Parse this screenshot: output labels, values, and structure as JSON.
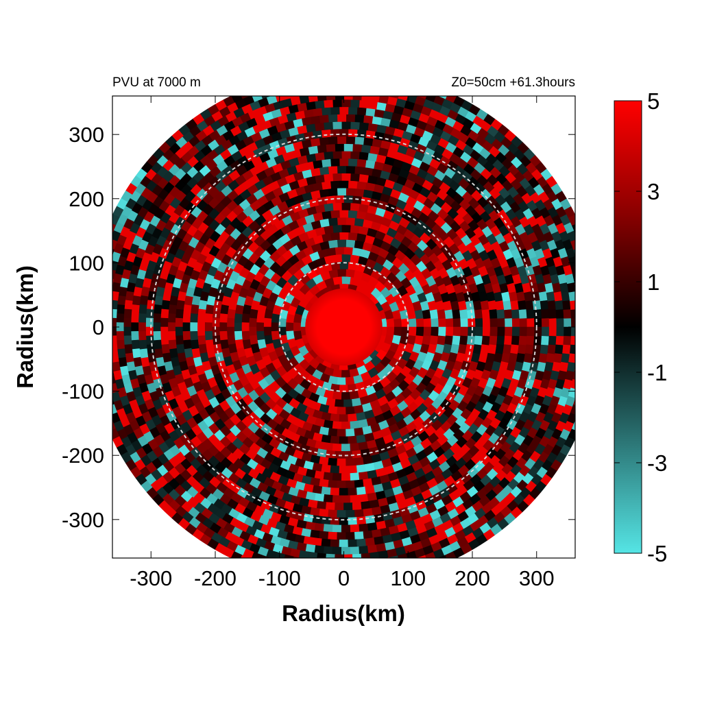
{
  "chart_data": {
    "type": "heatmap",
    "title_left": "PVU at  7000 m",
    "title_right": "Z0=50cm  +61.3hours",
    "xlabel": "Radius(km)",
    "ylabel": "Radius(km)",
    "xlim": [
      -360,
      360
    ],
    "ylim": [
      -360,
      360
    ],
    "x_ticks": [
      -300,
      -200,
      -100,
      0,
      100,
      200,
      300
    ],
    "y_ticks": [
      300,
      200,
      100,
      0,
      -100,
      -200,
      -300
    ],
    "domain_radius_km": 400,
    "reference_circles_km": [
      100,
      200,
      300
    ],
    "grid": false,
    "colorbar": {
      "range": [
        -5,
        5
      ],
      "ticks": [
        5,
        3,
        1,
        -1,
        -3,
        -5
      ],
      "colors": [
        "#55e5e5",
        "#2b7474",
        "#000000",
        "#8a0000",
        "#ff0000"
      ]
    },
    "field": {
      "units": "PVU",
      "core_value": 5,
      "core_radius_km": 60,
      "description_rings": [
        {
          "r_from": 0,
          "r_to": 60,
          "value": 5
        },
        {
          "r_from": 60,
          "r_to": 100,
          "value": 4
        },
        {
          "r_from": 100,
          "r_to": 200,
          "value": 3
        },
        {
          "r_from": 200,
          "r_to": 300,
          "value": 2
        },
        {
          "r_from": 300,
          "r_to": 400,
          "value": 1
        }
      ]
    }
  }
}
